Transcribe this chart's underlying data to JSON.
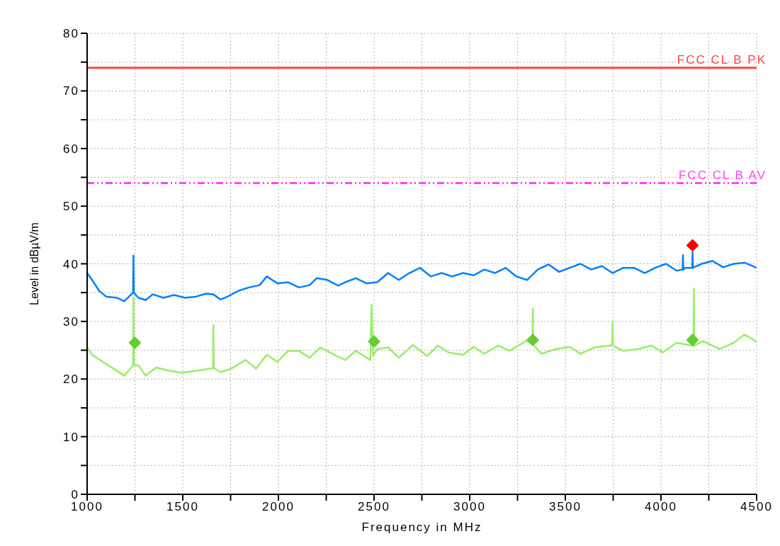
{
  "chart_data": {
    "type": "line",
    "xlabel": "Frequency in MHz",
    "ylabel": "Level in dBµV/m",
    "xlim": [
      1000,
      4500
    ],
    "xticks": [
      1000,
      {
        "value": 1250,
        "label": null
      },
      1500,
      {
        "value": 1750,
        "label": null
      },
      2000,
      {
        "value": 2250,
        "label": null
      },
      2500,
      {
        "value": 2750,
        "label": null
      },
      3000,
      {
        "value": 3250,
        "label": null
      },
      3500,
      {
        "value": 3750,
        "label": null
      },
      4000,
      {
        "value": 4250,
        "label": null
      },
      4500
    ],
    "ylim": [
      0,
      80
    ],
    "yticks": [
      0,
      {
        "value": 5,
        "label": null
      },
      10,
      {
        "value": 15,
        "label": null
      },
      20,
      {
        "value": 25,
        "label": null
      },
      30,
      {
        "value": 35,
        "label": null
      },
      40,
      {
        "value": 45,
        "label": null
      },
      50,
      {
        "value": 55,
        "label": null
      },
      60,
      {
        "value": 65,
        "label": null
      },
      70,
      {
        "value": 75,
        "label": null
      },
      80
    ],
    "grid": true,
    "marker": "none",
    "line_style": "solid",
    "ref_lines": [
      {
        "axis": "y",
        "value": 74,
        "label": "FCC CL B PK",
        "color": "#ff4444",
        "line_style": "solid"
      },
      {
        "axis": "y",
        "value": 54,
        "label": "FCC CL B AV",
        "color": "#ff44ff",
        "line_style": "dashed"
      }
    ],
    "series": [
      {
        "color": "#0080ff",
        "x": [
          1000,
          1026,
          1063,
          1100,
          1157,
          1194,
          1231,
          1240,
          1242,
          1244,
          1268,
          1306,
          1343,
          1399,
          1455,
          1511,
          1567,
          1622,
          1660,
          1697,
          1734,
          1790,
          1846,
          1902,
          1939,
          1995,
          2051,
          2107,
          2163,
          2200,
          2256,
          2312,
          2349,
          2405,
          2461,
          2517,
          2573,
          2629,
          2685,
          2741,
          2797,
          2853,
          2909,
          2965,
          3021,
          3076,
          3132,
          3188,
          3244,
          3300,
          3356,
          3412,
          3467,
          3523,
          3579,
          3635,
          3691,
          3747,
          3803,
          3859,
          3915,
          3970,
          4026,
          4082,
          4113,
          4115,
          4117,
          4127,
          4163,
          4165,
          4167,
          4213,
          4269,
          4325,
          4381,
          4437,
          4500
        ],
        "values": [
          38.4,
          37.2,
          35.3,
          34.3,
          34.1,
          33.5,
          34.7,
          35,
          41.4,
          35,
          34.1,
          33.7,
          34.7,
          34.1,
          34.6,
          34.1,
          34.3,
          34.8,
          34.7,
          33.8,
          34.3,
          35.3,
          35.9,
          36.3,
          37.8,
          36.6,
          36.8,
          35.9,
          36.3,
          37.5,
          37.2,
          36.2,
          36.8,
          37.5,
          36.6,
          36.8,
          38.4,
          37.2,
          38.4,
          39.3,
          37.8,
          38.4,
          37.8,
          38.4,
          38.0,
          39.0,
          38.4,
          39.3,
          37.8,
          37.2,
          39.0,
          39.9,
          38.6,
          39.3,
          40.0,
          39.0,
          39.6,
          38.4,
          39.3,
          39.3,
          38.4,
          39.3,
          40.0,
          38.8,
          39.0,
          41.5,
          39.0,
          39.3,
          39.3,
          42.0,
          39.3,
          40.0,
          40.5,
          39.4,
          40.0,
          40.2,
          39.3
        ]
      },
      {
        "color": "#99ee66",
        "x": [
          1000,
          1026,
          1082,
          1138,
          1194,
          1231,
          1240,
          1242,
          1244,
          1268,
          1306,
          1362,
          1418,
          1492,
          1567,
          1622,
          1658,
          1660,
          1662,
          1697,
          1753,
          1828,
          1883,
          1939,
          1995,
          2051,
          2107,
          2163,
          2219,
          2293,
          2349,
          2405,
          2461,
          2480,
          2487,
          2494,
          2517,
          2573,
          2629,
          2703,
          2778,
          2834,
          2890,
          2965,
          3021,
          3076,
          3151,
          3207,
          3300,
          3328,
          3330,
          3332,
          3374,
          3449,
          3523,
          3579,
          3654,
          3728,
          3745,
          3747,
          3749,
          3803,
          3877,
          3952,
          4008,
          4082,
          4157,
          4170,
          4172,
          4174,
          4220,
          4306,
          4381,
          4437,
          4500
        ],
        "values": [
          25.5,
          24.2,
          23.0,
          21.8,
          20.6,
          22.0,
          22.4,
          34.1,
          22.4,
          22.4,
          20.6,
          22.0,
          21.5,
          21.1,
          21.4,
          21.7,
          21.9,
          29.4,
          21.9,
          21.2,
          21.8,
          23.3,
          21.8,
          24.2,
          23.0,
          24.9,
          24.9,
          23.7,
          25.5,
          24.2,
          23.3,
          24.9,
          23.7,
          23.3,
          32.9,
          24.0,
          25.2,
          25.5,
          23.7,
          25.9,
          24.0,
          25.8,
          24.6,
          24.2,
          25.6,
          24.4,
          25.8,
          24.9,
          26.7,
          26.0,
          32.2,
          26.0,
          24.4,
          25.2,
          25.6,
          24.4,
          25.5,
          25.8,
          25.8,
          29.8,
          25.8,
          24.9,
          25.2,
          25.8,
          24.6,
          26.3,
          25.8,
          25.8,
          35.7,
          25.8,
          26.6,
          25.2,
          26.3,
          27.7,
          26.5
        ]
      },
      {
        "type": "scatter",
        "marker": "diamond",
        "color": "#66cc33",
        "x": [
          1250,
          2500,
          3330,
          4165
        ],
        "values": [
          26.3,
          26.5,
          26.8,
          26.8
        ]
      },
      {
        "type": "scatter",
        "marker": "diamond",
        "color": "#ff0000",
        "x": [
          4165
        ],
        "values": [
          43.2
        ]
      }
    ]
  }
}
